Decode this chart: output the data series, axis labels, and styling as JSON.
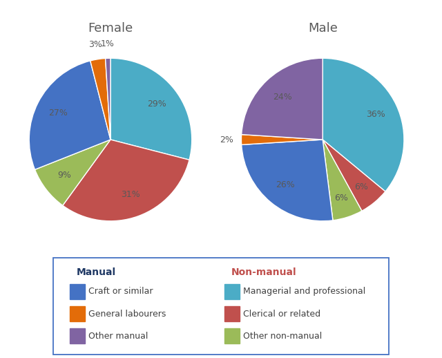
{
  "female": {
    "title": "Female",
    "values": [
      29,
      31,
      9,
      27,
      3,
      1
    ],
    "labels": [
      "29%",
      "31%",
      "9%",
      "27%",
      "3%",
      "1%"
    ],
    "colors": [
      "#4BACC6",
      "#C0504D",
      "#9BBB59",
      "#4472C4",
      "#E36C09",
      "#8064A2"
    ],
    "startangle": 90
  },
  "male": {
    "title": "Male",
    "values": [
      36,
      6,
      6,
      26,
      2,
      24
    ],
    "labels": [
      "36%",
      "6%",
      "6%",
      "26%",
      "2%",
      "24%"
    ],
    "colors": [
      "#4BACC6",
      "#C0504D",
      "#9BBB59",
      "#4472C4",
      "#E36C09",
      "#8064A2"
    ],
    "startangle": 90
  },
  "legend": {
    "manual_title": "Manual",
    "manual_title_color": "#1F3864",
    "nonmanual_title": "Non-manual",
    "nonmanual_title_color": "#C0504D",
    "left_items": [
      {
        "label": "Craft or similar",
        "color": "#4472C4"
      },
      {
        "label": "General labourers",
        "color": "#E36C09"
      },
      {
        "label": "Other manual",
        "color": "#8064A2"
      }
    ],
    "right_items": [
      {
        "label": "Managerial and professional",
        "color": "#4BACC6"
      },
      {
        "label": "Clerical or related",
        "color": "#C0504D"
      },
      {
        "label": "Other non-manual",
        "color": "#9BBB59"
      }
    ]
  },
  "label_color": "#595959",
  "title_color": "#595959",
  "bg_color": "#FFFFFF",
  "legend_border_color": "#4472C4"
}
